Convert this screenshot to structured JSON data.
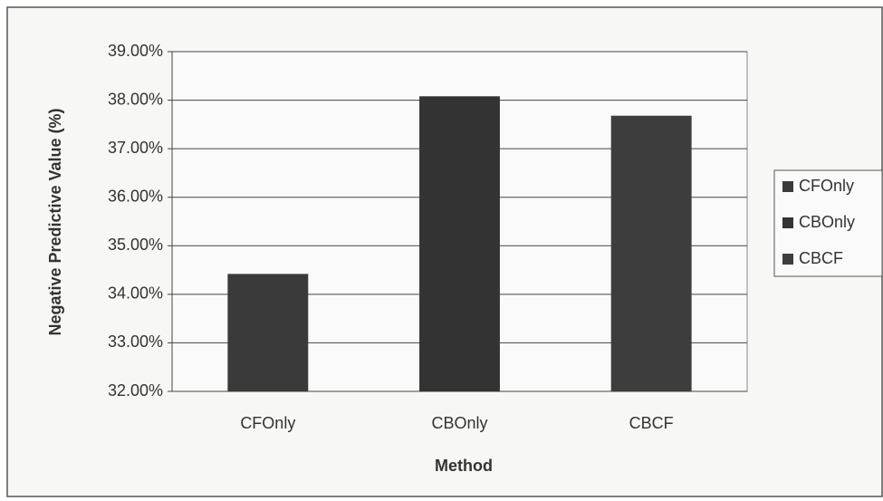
{
  "chart_data": {
    "type": "bar",
    "x_label": "Method",
    "y_label": "Negative Predictive Value (%)",
    "categories": [
      "CFOnly",
      "CBOnly",
      "CBCF"
    ],
    "values": [
      34.42,
      38.08,
      37.68
    ],
    "colors": [
      "#3a3a3a",
      "#333333",
      "#3d3d3d"
    ],
    "ylim": [
      32,
      39
    ],
    "yticks": [
      {
        "value": 32,
        "label": "32.00%"
      },
      {
        "value": 33,
        "label": "33.00%"
      },
      {
        "value": 34,
        "label": "34.00%"
      },
      {
        "value": 35,
        "label": "35.00%"
      },
      {
        "value": 36,
        "label": "36.00%"
      },
      {
        "value": 37,
        "label": "37.00%"
      },
      {
        "value": 38,
        "label": "38.00%"
      },
      {
        "value": 39,
        "label": "39.00%"
      }
    ],
    "grid": true,
    "legend": "right"
  }
}
